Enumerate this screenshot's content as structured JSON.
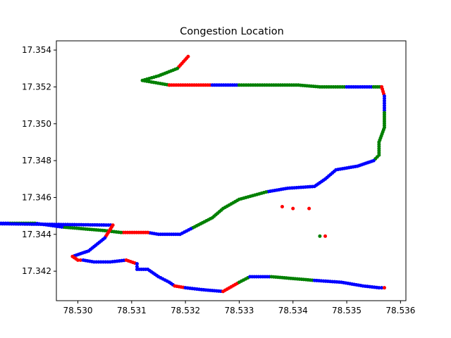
{
  "chart_data": {
    "type": "scatter",
    "title": "Congestion Location",
    "xlabel": "",
    "ylabel": "",
    "xlim": [
      78.5296,
      78.5361
    ],
    "ylim": [
      17.3404,
      17.3545
    ],
    "xticks": [
      "78.530",
      "78.531",
      "78.532",
      "78.533",
      "78.534",
      "78.535",
      "78.536"
    ],
    "yticks": [
      "17.342",
      "17.344",
      "17.346",
      "17.348",
      "17.350",
      "17.352",
      "17.354"
    ],
    "grid": false,
    "marker_size": 5,
    "colors": {
      "red": "#ff0000",
      "green": "#008000",
      "blue": "#0000ff"
    },
    "route": [
      [
        78.53205,
        17.35365,
        "red"
      ],
      [
        78.53185,
        17.353,
        "green"
      ],
      [
        78.5315,
        17.3526,
        "green"
      ],
      [
        78.5312,
        17.35235,
        "green"
      ],
      [
        78.5317,
        17.3521,
        "green"
      ],
      [
        78.5317,
        17.3521,
        "red"
      ],
      [
        78.5325,
        17.3521,
        "blue"
      ],
      [
        78.533,
        17.3521,
        "green"
      ],
      [
        78.5336,
        17.3521,
        "green"
      ],
      [
        78.5341,
        17.3521,
        "green"
      ],
      [
        78.5345,
        17.352,
        "green"
      ],
      [
        78.535,
        17.352,
        "blue"
      ],
      [
        78.5355,
        17.352,
        "green"
      ],
      [
        78.53565,
        17.352,
        "red"
      ],
      [
        78.5357,
        17.3515,
        "blue"
      ],
      [
        78.5357,
        17.3506,
        "green"
      ],
      [
        78.5357,
        17.3498,
        "green"
      ],
      [
        78.5356,
        17.349,
        "green"
      ],
      [
        78.5356,
        17.3483,
        "green"
      ],
      [
        78.5355,
        17.348,
        "blue"
      ],
      [
        78.5352,
        17.3477,
        "blue"
      ],
      [
        78.5348,
        17.3475,
        "blue"
      ],
      [
        78.5346,
        17.347,
        "blue"
      ],
      [
        78.5344,
        17.3466,
        "blue"
      ],
      [
        78.5339,
        17.3465,
        "blue"
      ],
      [
        78.5335,
        17.3463,
        "green"
      ],
      [
        78.533,
        17.3459,
        "green"
      ],
      [
        78.5327,
        17.3454,
        "green"
      ],
      [
        78.5325,
        17.3449,
        "green"
      ],
      [
        78.5321,
        17.3443,
        "blue"
      ],
      [
        78.5319,
        17.344,
        "blue"
      ],
      [
        78.5315,
        17.344,
        "blue"
      ],
      [
        78.5313,
        17.3441,
        "red"
      ],
      [
        78.5308,
        17.3441,
        "green"
      ],
      [
        78.5305,
        17.3442,
        "green"
      ],
      [
        78.5301,
        17.3443,
        "green"
      ],
      [
        78.5297,
        17.3444,
        "blue"
      ],
      [
        78.5292,
        17.3446,
        "green"
      ],
      [
        78.5287,
        17.3446,
        "blue"
      ],
      [
        78.5284,
        17.3446,
        "blue"
      ],
      [
        78.5281,
        17.3447,
        "blue"
      ],
      [
        78.5278,
        17.3446,
        "blue"
      ],
      [
        78.53065,
        17.3445,
        "red"
      ],
      [
        78.5305,
        17.3438,
        "blue"
      ],
      [
        78.5302,
        17.3431,
        "blue"
      ],
      [
        78.5299,
        17.3428,
        "red"
      ],
      [
        78.53,
        17.3426,
        "red"
      ],
      [
        78.5301,
        17.3426,
        "blue"
      ],
      [
        78.5303,
        17.3425,
        "blue"
      ],
      [
        78.5306,
        17.3425,
        "blue"
      ],
      [
        78.5309,
        17.3426,
        "red"
      ],
      [
        78.5311,
        17.3424,
        "blue"
      ],
      [
        78.5311,
        17.3421,
        "blue"
      ],
      [
        78.5313,
        17.3421,
        "blue"
      ],
      [
        78.5315,
        17.3417,
        "blue"
      ],
      [
        78.5317,
        17.3414,
        "blue"
      ],
      [
        78.5318,
        17.3412,
        "red"
      ],
      [
        78.532,
        17.3411,
        "blue"
      ],
      [
        78.5323,
        17.341,
        "blue"
      ],
      [
        78.5327,
        17.3409,
        "red"
      ],
      [
        78.533,
        17.3414,
        "green"
      ],
      [
        78.5332,
        17.3417,
        "blue"
      ],
      [
        78.5336,
        17.3417,
        "green"
      ],
      [
        78.534,
        17.3416,
        "green"
      ],
      [
        78.5344,
        17.3415,
        "blue"
      ],
      [
        78.5349,
        17.3414,
        "blue"
      ],
      [
        78.5353,
        17.3412,
        "blue"
      ],
      [
        78.5356,
        17.3411,
        "blue"
      ],
      [
        78.5357,
        17.3411,
        "red"
      ],
      [
        78.5338,
        17.3455,
        "red"
      ],
      [
        78.534,
        17.3454,
        "red"
      ],
      [
        78.5343,
        17.3454,
        "red"
      ],
      [
        78.5346,
        17.3439,
        "red"
      ],
      [
        78.5345,
        17.3439,
        "green"
      ]
    ]
  }
}
